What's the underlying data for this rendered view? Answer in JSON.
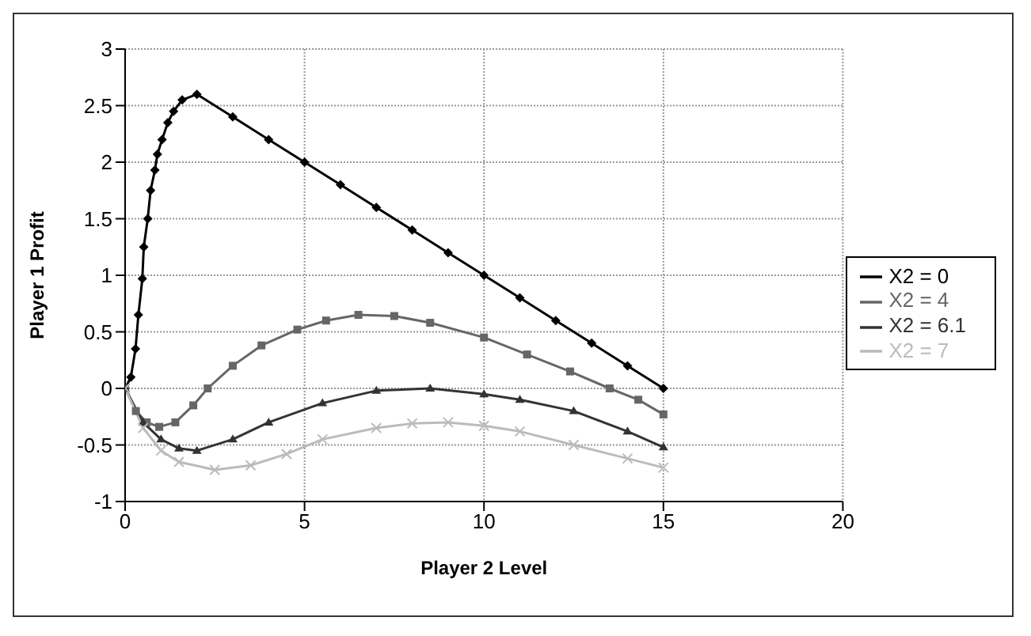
{
  "chart_data": {
    "type": "line",
    "xlabel": "Player 2 Level",
    "ylabel": "Player 1 Profit",
    "xlim": [
      0,
      20
    ],
    "xticks": [
      0,
      5,
      10,
      15,
      20
    ],
    "ylim": [
      -1,
      3
    ],
    "yticks": [
      -1,
      -0.5,
      0,
      0.5,
      1,
      1.5,
      2,
      2.5,
      3
    ],
    "grid": true,
    "legend": "right",
    "series": [
      {
        "name": "X2 = 0",
        "color": "#000000",
        "marker": "diamond",
        "x": [
          0,
          0.16,
          0.29,
          0.37,
          0.48,
          0.52,
          0.63,
          0.71,
          0.83,
          0.9,
          1.03,
          1.19,
          1.35,
          1.59,
          2,
          3,
          4,
          5,
          6,
          7,
          8,
          9,
          10,
          11,
          12,
          13,
          14,
          15
        ],
        "values": [
          0,
          0.1,
          0.35,
          0.65,
          0.97,
          1.25,
          1.5,
          1.75,
          1.93,
          2.07,
          2.2,
          2.35,
          2.45,
          2.55,
          2.6,
          2.4,
          2.2,
          2.0,
          1.8,
          1.6,
          1.4,
          1.2,
          1.0,
          0.8,
          0.6,
          0.4,
          0.2,
          0
        ]
      },
      {
        "name": "X2 = 4",
        "color": "#666666",
        "marker": "square",
        "x": [
          0,
          0.3,
          0.6,
          0.95,
          1.4,
          1.9,
          2.3,
          3,
          3.8,
          4.8,
          5.6,
          6.5,
          7.5,
          8.5,
          10,
          11.2,
          12.4,
          13.5,
          14.3,
          15
        ],
        "values": [
          0,
          -0.2,
          -0.3,
          -0.34,
          -0.3,
          -0.15,
          0,
          0.2,
          0.38,
          0.52,
          0.6,
          0.65,
          0.64,
          0.58,
          0.45,
          0.3,
          0.15,
          0.0,
          -0.1,
          -0.23
        ]
      },
      {
        "name": "X2 = 6.1",
        "color": "#333333",
        "marker": "triangle",
        "x": [
          0,
          0.5,
          1,
          1.5,
          2,
          3,
          4,
          5.5,
          7,
          8.5,
          10,
          11,
          12.5,
          14,
          15
        ],
        "values": [
          0,
          -0.3,
          -0.45,
          -0.53,
          -0.55,
          -0.45,
          -0.3,
          -0.13,
          -0.02,
          0,
          -0.05,
          -0.1,
          -0.2,
          -0.38,
          -0.52
        ]
      },
      {
        "name": "X2 = 7",
        "color": "#bbbbbb",
        "marker": "cross",
        "x": [
          0,
          0.5,
          1,
          1.5,
          2.5,
          3.5,
          4.5,
          5.5,
          7,
          8,
          9,
          10,
          11,
          12.5,
          14,
          15
        ],
        "values": [
          0,
          -0.35,
          -0.55,
          -0.65,
          -0.72,
          -0.68,
          -0.58,
          -0.45,
          -0.35,
          -0.31,
          -0.3,
          -0.33,
          -0.38,
          -0.5,
          -0.62,
          -0.7
        ]
      }
    ]
  }
}
